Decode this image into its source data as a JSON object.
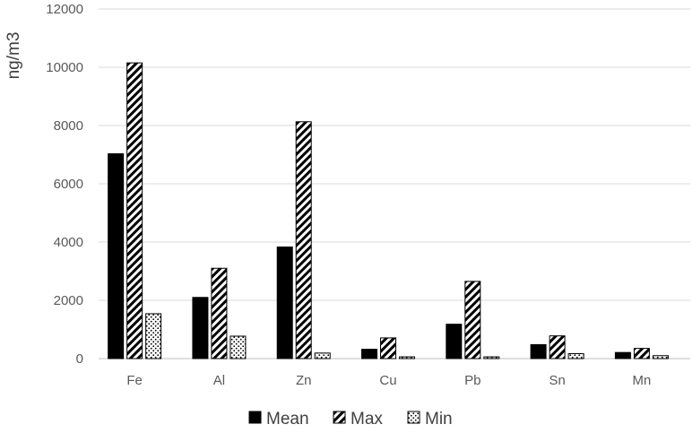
{
  "chart_data": {
    "type": "bar",
    "title": "",
    "xlabel": "",
    "ylabel": "ng/m3",
    "categories": [
      "Fe",
      "Al",
      "Zn",
      "Cu",
      "Pb",
      "Sn",
      "Mn"
    ],
    "ylim": [
      0,
      12000
    ],
    "yticks": [
      0,
      2000,
      4000,
      6000,
      8000,
      10000,
      12000
    ],
    "grid": true,
    "legend_position": "bottom",
    "series": [
      {
        "name": "Mean",
        "fill": "solid-black",
        "color": "#000000",
        "values": [
          7030,
          2100,
          3830,
          320,
          1180,
          480,
          210
        ]
      },
      {
        "name": "Max",
        "fill": "diagonal-hatch",
        "color": "#000000",
        "values": [
          10150,
          3100,
          8130,
          710,
          2650,
          780,
          350
        ]
      },
      {
        "name": "Min",
        "fill": "dotted",
        "color": "#000000",
        "values": [
          1540,
          770,
          190,
          60,
          60,
          170,
          100
        ]
      }
    ]
  }
}
